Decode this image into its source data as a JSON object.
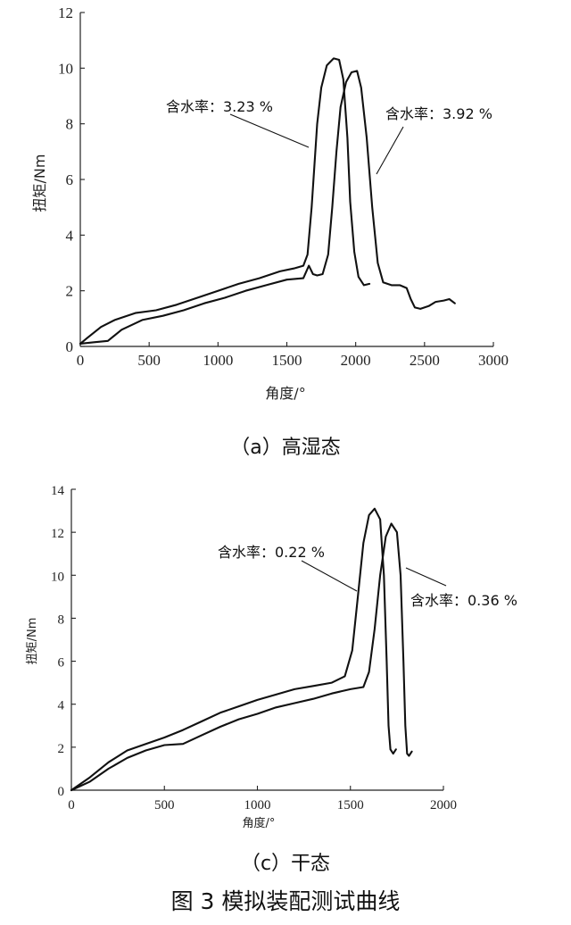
{
  "chart_data": [
    {
      "type": "line",
      "panel_caption": "（a）高湿态",
      "xlabel": "角度/°",
      "ylabel": "扭矩/Nm",
      "xlim": [
        0,
        3000
      ],
      "ylim": [
        0,
        12
      ],
      "xticks": [
        0,
        500,
        1000,
        1500,
        2000,
        2500,
        3000
      ],
      "yticks": [
        0,
        2,
        4,
        6,
        8,
        10,
        12
      ],
      "series": [
        {
          "label": "含水率：3.23 %",
          "points": [
            [
              0,
              0.1
            ],
            [
              50,
              0.3
            ],
            [
              150,
              0.7
            ],
            [
              250,
              0.95
            ],
            [
              400,
              1.2
            ],
            [
              550,
              1.3
            ],
            [
              700,
              1.5
            ],
            [
              850,
              1.75
            ],
            [
              1000,
              2.0
            ],
            [
              1150,
              2.25
            ],
            [
              1300,
              2.45
            ],
            [
              1450,
              2.7
            ],
            [
              1550,
              2.8
            ],
            [
              1620,
              2.9
            ],
            [
              1650,
              3.3
            ],
            [
              1680,
              5.0
            ],
            [
              1700,
              6.5
            ],
            [
              1720,
              8.0
            ],
            [
              1750,
              9.3
            ],
            [
              1790,
              10.1
            ],
            [
              1840,
              10.35
            ],
            [
              1880,
              10.3
            ],
            [
              1910,
              9.6
            ],
            [
              1940,
              7.5
            ],
            [
              1960,
              5.2
            ],
            [
              1990,
              3.4
            ],
            [
              2020,
              2.5
            ],
            [
              2060,
              2.2
            ],
            [
              2100,
              2.25
            ]
          ]
        },
        {
          "label": "含水率：3.92 %",
          "points": [
            [
              0,
              0.1
            ],
            [
              100,
              0.15
            ],
            [
              200,
              0.2
            ],
            [
              300,
              0.6
            ],
            [
              450,
              0.95
            ],
            [
              600,
              1.1
            ],
            [
              750,
              1.3
            ],
            [
              900,
              1.55
            ],
            [
              1050,
              1.75
            ],
            [
              1200,
              2.0
            ],
            [
              1350,
              2.2
            ],
            [
              1500,
              2.4
            ],
            [
              1620,
              2.45
            ],
            [
              1660,
              2.9
            ],
            [
              1690,
              2.6
            ],
            [
              1720,
              2.55
            ],
            [
              1760,
              2.6
            ],
            [
              1800,
              3.3
            ],
            [
              1830,
              5.0
            ],
            [
              1860,
              7.0
            ],
            [
              1890,
              8.6
            ],
            [
              1930,
              9.5
            ],
            [
              1970,
              9.85
            ],
            [
              2010,
              9.9
            ],
            [
              2040,
              9.3
            ],
            [
              2080,
              7.5
            ],
            [
              2120,
              5.0
            ],
            [
              2160,
              3.0
            ],
            [
              2200,
              2.3
            ],
            [
              2260,
              2.2
            ],
            [
              2320,
              2.2
            ],
            [
              2370,
              2.1
            ],
            [
              2400,
              1.7
            ],
            [
              2430,
              1.4
            ],
            [
              2470,
              1.35
            ],
            [
              2530,
              1.45
            ],
            [
              2580,
              1.6
            ],
            [
              2640,
              1.65
            ],
            [
              2680,
              1.7
            ],
            [
              2720,
              1.55
            ]
          ]
        }
      ],
      "annotations": [
        {
          "text": "含水率：3.23 %",
          "series": 0
        },
        {
          "text": "含水率：3.92 %",
          "series": 1
        }
      ]
    },
    {
      "type": "line",
      "panel_caption": "（c）干态",
      "xlabel": "角度/°",
      "ylabel": "扭矩/Nm",
      "xlim": [
        0,
        2000
      ],
      "ylim": [
        0,
        14
      ],
      "xticks": [
        0,
        500,
        1000,
        1500,
        2000
      ],
      "yticks": [
        0,
        2,
        4,
        6,
        8,
        10,
        12,
        14
      ],
      "series": [
        {
          "label": "含水率：0.22 %",
          "points": [
            [
              0,
              0
            ],
            [
              100,
              0.6
            ],
            [
              200,
              1.3
            ],
            [
              300,
              1.85
            ],
            [
              400,
              2.15
            ],
            [
              500,
              2.45
            ],
            [
              600,
              2.8
            ],
            [
              700,
              3.2
            ],
            [
              800,
              3.6
            ],
            [
              900,
              3.9
            ],
            [
              1000,
              4.2
            ],
            [
              1100,
              4.45
            ],
            [
              1200,
              4.7
            ],
            [
              1300,
              4.85
            ],
            [
              1400,
              5.0
            ],
            [
              1470,
              5.3
            ],
            [
              1510,
              6.5
            ],
            [
              1540,
              9.0
            ],
            [
              1570,
              11.5
            ],
            [
              1600,
              12.8
            ],
            [
              1630,
              13.1
            ],
            [
              1660,
              12.6
            ],
            [
              1680,
              10.0
            ],
            [
              1695,
              6.0
            ],
            [
              1705,
              3.0
            ],
            [
              1715,
              1.9
            ],
            [
              1730,
              1.7
            ],
            [
              1745,
              1.9
            ]
          ]
        },
        {
          "label": "含水率：0.36 %",
          "points": [
            [
              0,
              0
            ],
            [
              100,
              0.4
            ],
            [
              200,
              1.0
            ],
            [
              300,
              1.5
            ],
            [
              400,
              1.85
            ],
            [
              500,
              2.1
            ],
            [
              600,
              2.15
            ],
            [
              700,
              2.55
            ],
            [
              800,
              2.95
            ],
            [
              900,
              3.3
            ],
            [
              1000,
              3.55
            ],
            [
              1100,
              3.85
            ],
            [
              1200,
              4.05
            ],
            [
              1300,
              4.25
            ],
            [
              1400,
              4.5
            ],
            [
              1500,
              4.7
            ],
            [
              1570,
              4.8
            ],
            [
              1600,
              5.5
            ],
            [
              1630,
              7.5
            ],
            [
              1660,
              10.0
            ],
            [
              1690,
              11.8
            ],
            [
              1720,
              12.4
            ],
            [
              1750,
              12.0
            ],
            [
              1770,
              10.0
            ],
            [
              1785,
              6.0
            ],
            [
              1795,
              3.0
            ],
            [
              1805,
              1.7
            ],
            [
              1815,
              1.6
            ],
            [
              1830,
              1.8
            ]
          ]
        }
      ],
      "annotations": [
        {
          "text": "含水率：0.22 %",
          "series": 0
        },
        {
          "text": "含水率：0.36 %",
          "series": 1
        }
      ]
    }
  ],
  "figure_caption": "图 3  模拟装配测试曲线"
}
